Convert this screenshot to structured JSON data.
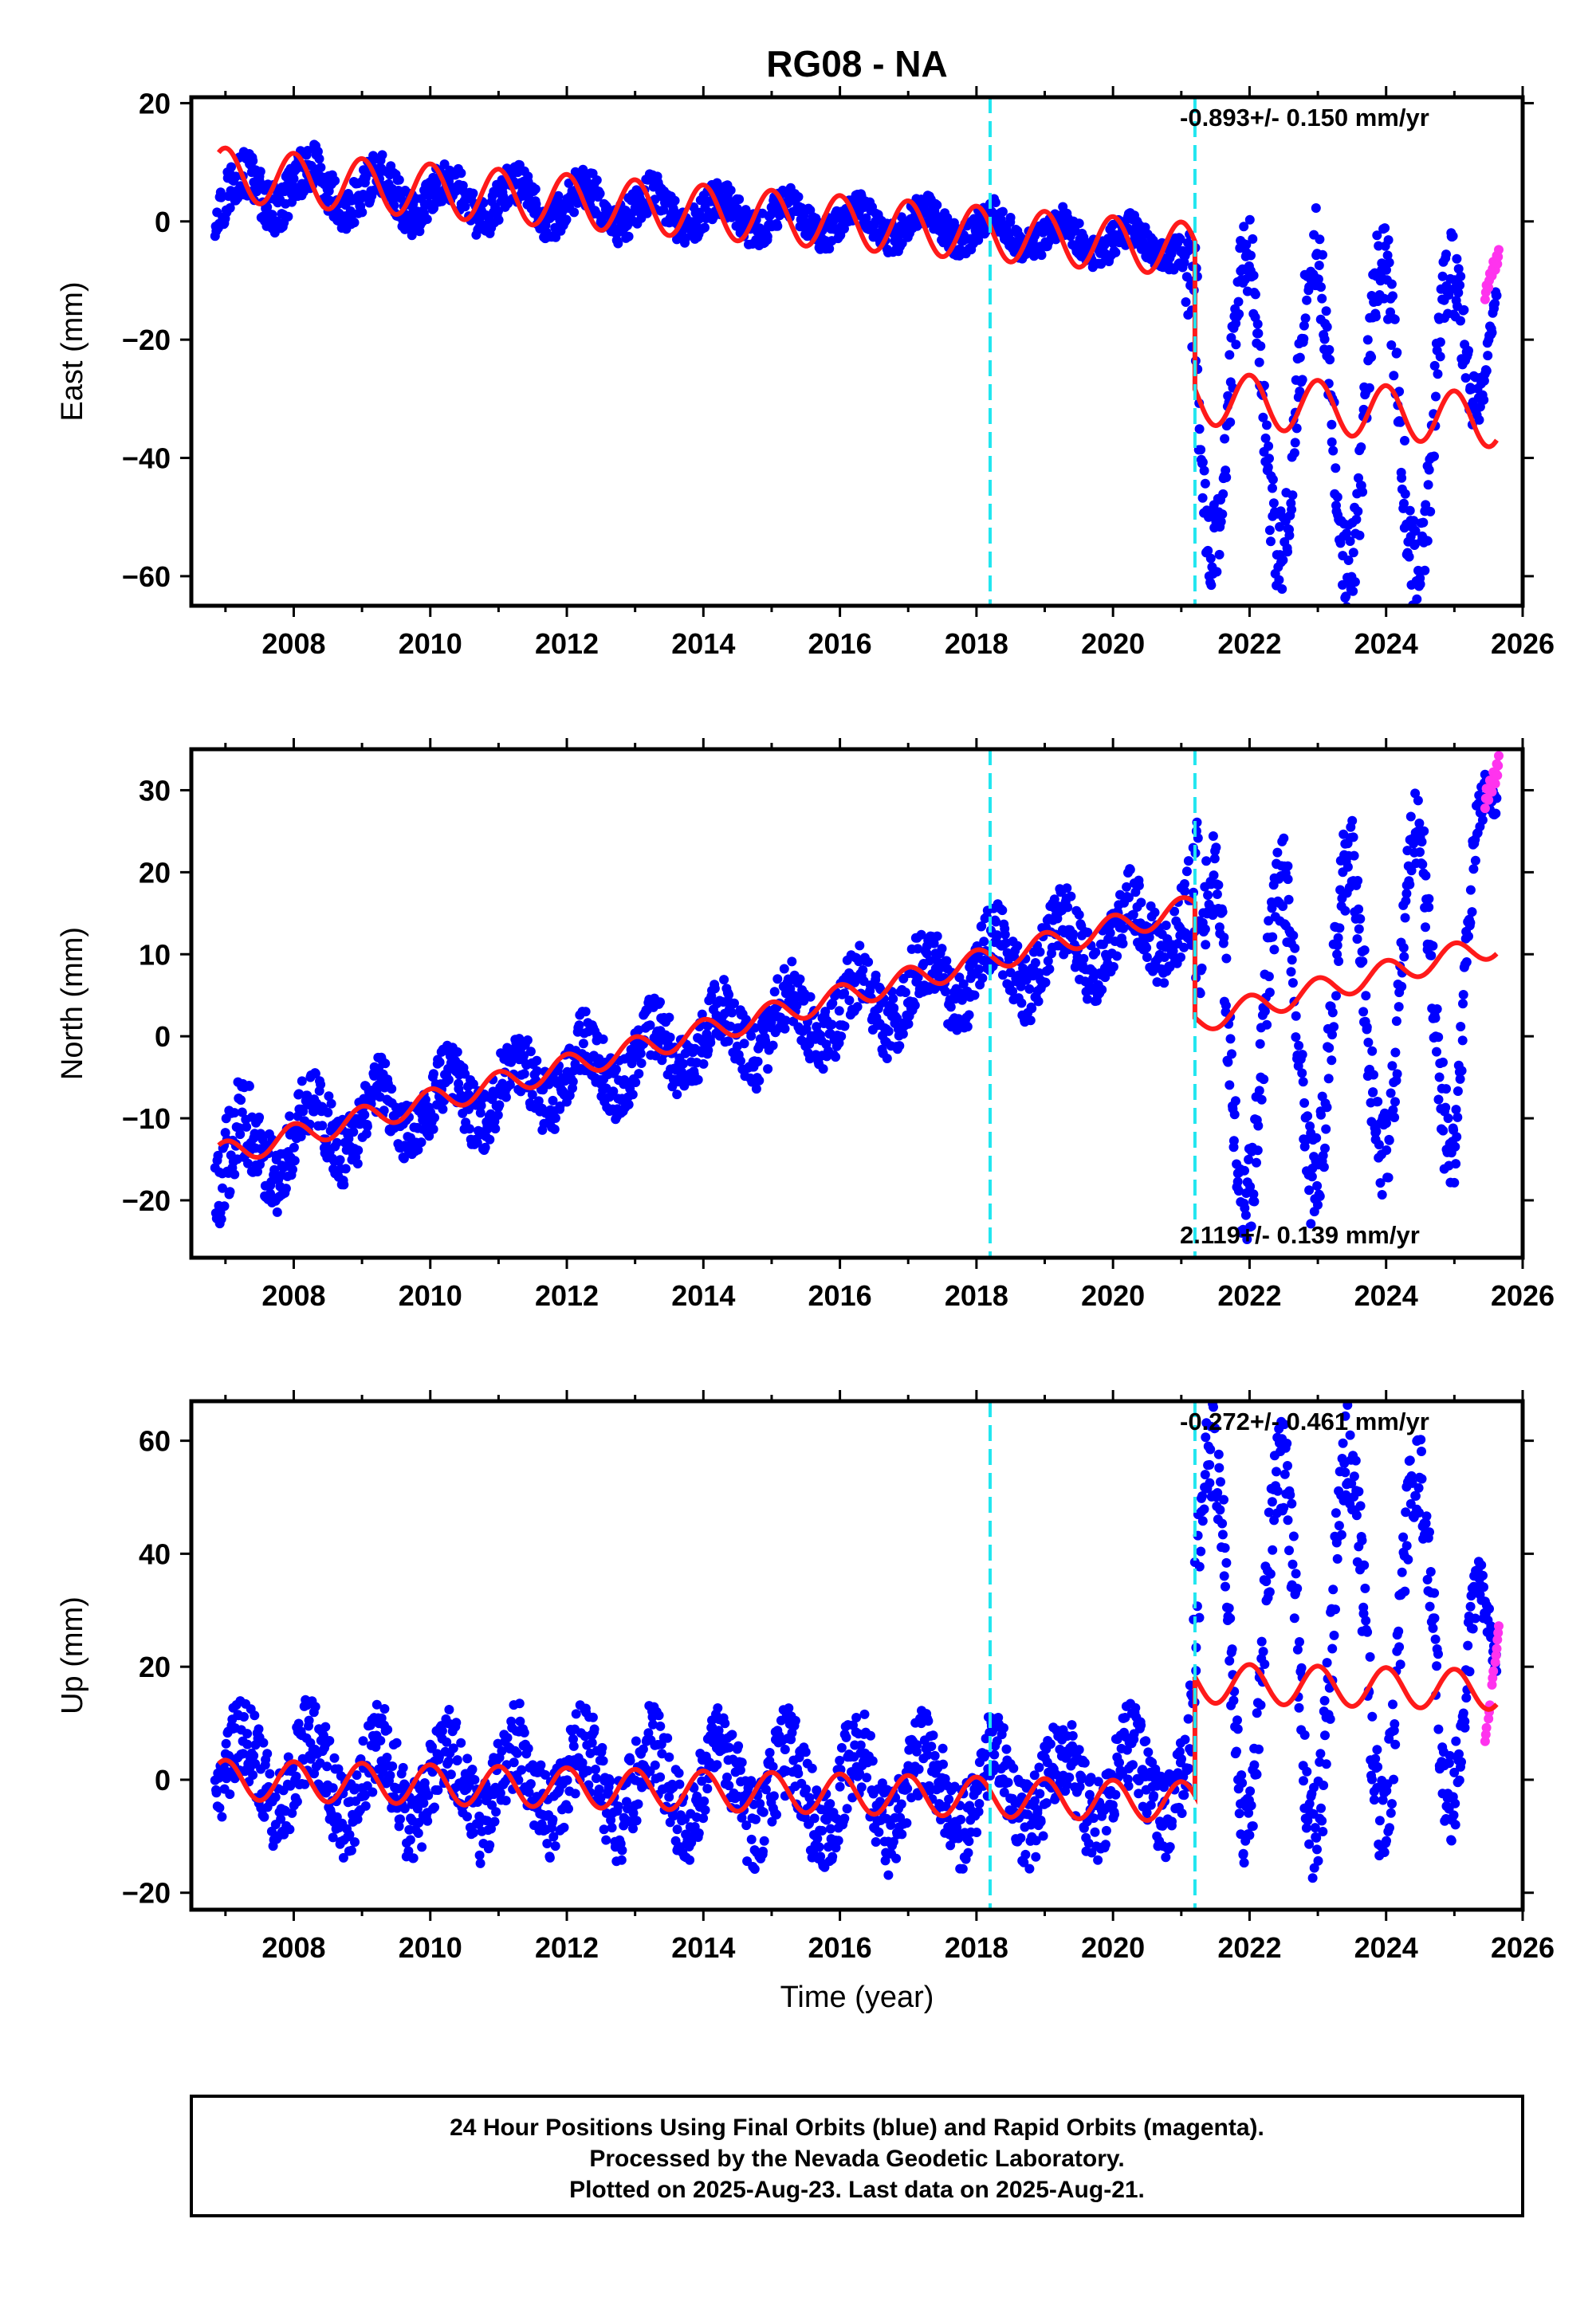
{
  "title": "RG08 - NA",
  "xlabel": "Time (year)",
  "footer": {
    "line1": "24 Hour Positions Using Final Orbits (blue) and Rapid Orbits (magenta).",
    "line2": "Processed by the Nevada Geodetic Laboratory.",
    "line3": "Plotted on 2025-Aug-23. Last data on 2025-Aug-21."
  },
  "colors": {
    "final": "#0000ff",
    "rapid": "#ff33ee",
    "model": "#ff1a1a",
    "event": "#22e6f0"
  },
  "chart_data": [
    {
      "type": "scatter",
      "panel": "east",
      "title": "",
      "xlabel": "",
      "ylabel": "East (mm)",
      "xlim": [
        2006.5,
        2026
      ],
      "ylim": [
        -65,
        21
      ],
      "xticks": [
        2008,
        2010,
        2012,
        2014,
        2016,
        2018,
        2020,
        2022,
        2024,
        2026
      ],
      "yticks": [
        -60,
        -40,
        -20,
        0,
        20
      ],
      "rate_label": "-0.893+/- 0.150 mm/yr",
      "rate_position": "top-right",
      "event_lines": [
        2018.2,
        2021.2
      ],
      "data_span": [
        2006.85,
        2025.63
      ],
      "rapid_span": [
        2025.4,
        2025.63
      ],
      "series": [
        {
          "name": "Final Orbits",
          "color": "blue",
          "envelope": {
            "x": [
              2006.9,
              2008,
              2010,
              2012,
              2014,
              2016,
              2018,
              2019.5,
              2021.0,
              2021.3,
              2022,
              2023,
              2024,
              2025,
              2025.6
            ],
            "low": [
              -2,
              0,
              -1,
              -2,
              -3,
              -4,
              -5,
              -7,
              -8,
              -58,
              -58,
              -60,
              -62,
              -62,
              -15
            ],
            "high": [
              10,
              12,
              9,
              8,
              6,
              4,
              3,
              1,
              0,
              -6,
              -4,
              -5,
              -6,
              -8,
              -5
            ]
          }
        },
        {
          "name": "Rapid Orbits",
          "color": "magenta",
          "x": [
            2025.45,
            2025.5,
            2025.55,
            2025.6,
            2025.63
          ],
          "y": [
            -12,
            -10,
            -8,
            -7,
            -6
          ]
        }
      ],
      "model": {
        "rate": -0.893,
        "offset_before": 8.0,
        "annual_amplitude": 4.5,
        "segments": [
          [
            2006.9,
            2021.2
          ],
          [
            2021.2,
            2025.63
          ]
        ],
        "jump_at_2021_2": -25
      }
    },
    {
      "type": "scatter",
      "panel": "north",
      "title": "",
      "xlabel": "",
      "ylabel": "North (mm)",
      "xlim": [
        2006.5,
        2026
      ],
      "ylim": [
        -27,
        35
      ],
      "xticks": [
        2008,
        2010,
        2012,
        2014,
        2016,
        2018,
        2020,
        2022,
        2024,
        2026
      ],
      "yticks": [
        -20,
        -10,
        0,
        10,
        20,
        30
      ],
      "rate_label": "2.119+/- 0.139 mm/yr",
      "rate_position": "bottom-right",
      "event_lines": [
        2018.2,
        2021.2
      ],
      "data_span": [
        2006.85,
        2025.63
      ],
      "rapid_span": [
        2025.4,
        2025.63
      ],
      "series": [
        {
          "name": "Final Orbits",
          "color": "blue",
          "envelope": {
            "x": [
              2006.9,
              2008,
              2010,
              2012,
              2014,
              2016,
              2018,
              2020,
              2021.1,
              2021.3,
              2022,
              2023,
              2024,
              2025,
              2025.6
            ],
            "low": [
              -25,
              -18,
              -14,
              -10,
              -6,
              -3,
              2,
              6,
              8,
              -20,
              -20,
              -18,
              -15,
              -14,
              20
            ],
            "high": [
              -8,
              -6,
              -3,
              1,
              5,
              9,
              14,
              18,
              21,
              22,
              20,
              23,
              25,
              28,
              31
            ]
          }
        },
        {
          "name": "Rapid Orbits",
          "color": "magenta",
          "x": [
            2025.45,
            2025.5,
            2025.55,
            2025.6,
            2025.63
          ],
          "y": [
            29,
            30,
            31,
            32,
            33
          ]
        }
      ],
      "model": {
        "rate": 2.119,
        "offset_before": -14.5,
        "annual_amplitude": 1.5,
        "segments": [
          [
            2006.9,
            2021.2
          ],
          [
            2021.2,
            2025.63
          ]
        ],
        "jump_at_2021_2": -14
      }
    },
    {
      "type": "scatter",
      "panel": "up",
      "title": "",
      "xlabel": "Time (year)",
      "ylabel": "Up (mm)",
      "xlim": [
        2006.5,
        2026
      ],
      "ylim": [
        -23,
        67
      ],
      "xticks": [
        2008,
        2010,
        2012,
        2014,
        2016,
        2018,
        2020,
        2022,
        2024,
        2026
      ],
      "yticks": [
        -20,
        0,
        20,
        40,
        60
      ],
      "rate_label": "-0.272+/- 0.461 mm/yr",
      "rate_position": "top-right",
      "event_lines": [
        2018.2,
        2021.2
      ],
      "data_span": [
        2006.85,
        2025.63
      ],
      "rapid_span": [
        2025.4,
        2025.63
      ],
      "series": [
        {
          "name": "Final Orbits",
          "color": "blue",
          "envelope": {
            "x": [
              2006.9,
              2008,
              2010,
              2012,
              2014,
              2016,
              2018,
              2020,
              2021.1,
              2021.3,
              2022,
              2023,
              2024,
              2025,
              2025.6
            ],
            "low": [
              -8,
              -10,
              -12,
              -11,
              -12,
              -14,
              -13,
              -12,
              -10,
              2,
              -8,
              -10,
              -6,
              -4,
              5
            ],
            "high": [
              12,
              12,
              10,
              11,
              10,
              10,
              9,
              10,
              11,
              62,
              58,
              62,
              60,
              58,
              25
            ]
          }
        },
        {
          "name": "Rapid Orbits",
          "color": "magenta",
          "x": [
            2025.45,
            2025.5,
            2025.55,
            2025.6,
            2025.63
          ],
          "y": [
            8,
            12,
            18,
            22,
            26
          ]
        }
      ],
      "model": {
        "rate": -0.272,
        "offset_before": 0.0,
        "annual_amplitude": 3.5,
        "segments": [
          [
            2006.9,
            2021.2
          ],
          [
            2021.2,
            2025.63
          ]
        ],
        "jump_at_2021_2": 21
      }
    }
  ]
}
